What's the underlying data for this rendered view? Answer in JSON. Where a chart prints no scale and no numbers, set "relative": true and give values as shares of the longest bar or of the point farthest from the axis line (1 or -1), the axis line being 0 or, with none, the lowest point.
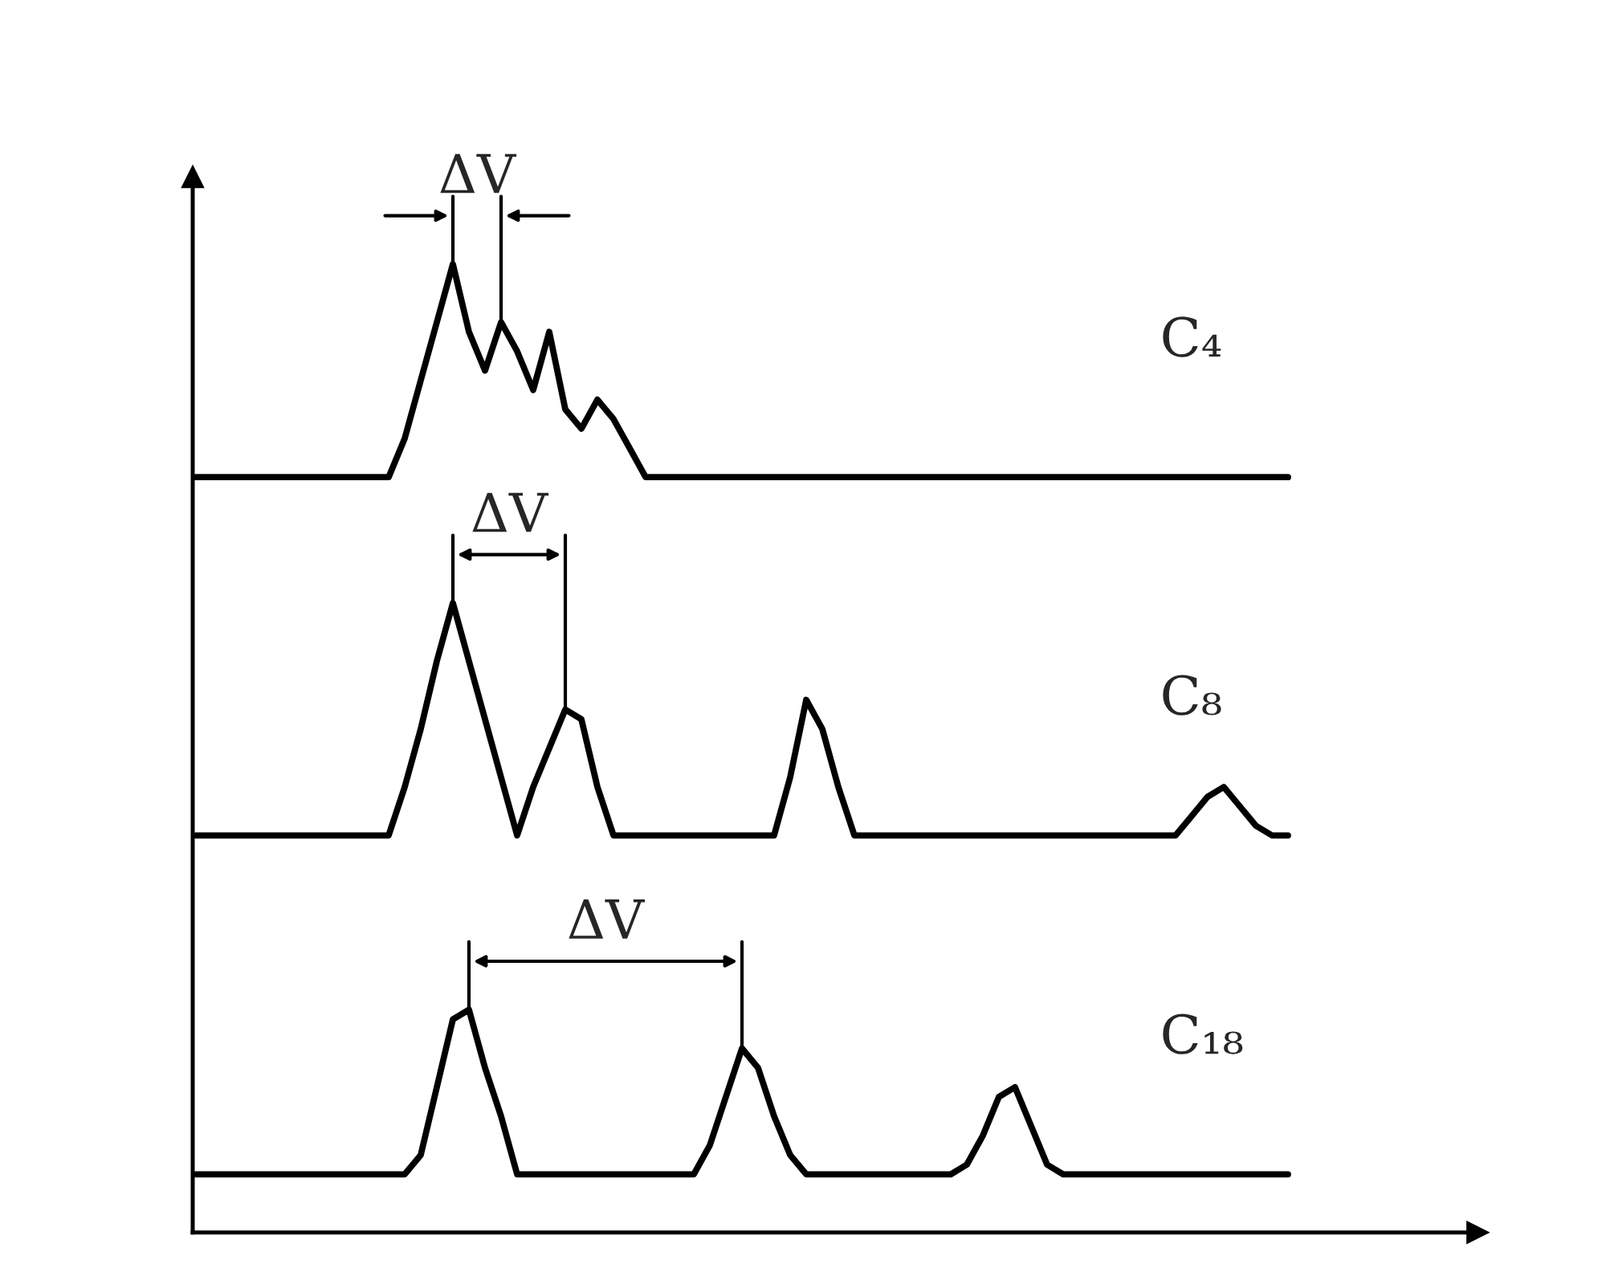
{
  "chart_data": {
    "type": "line",
    "relative": true,
    "categories": [
      null,
      null,
      null,
      null,
      null,
      null,
      null,
      null,
      null,
      null,
      null,
      null,
      null,
      null,
      null,
      null,
      null,
      null,
      null,
      null,
      null,
      null,
      null,
      null,
      null,
      null,
      null,
      null,
      null,
      null,
      null,
      null,
      null,
      null,
      null,
      null,
      null,
      null,
      null,
      null,
      null,
      null,
      null,
      null,
      null,
      null,
      null,
      null,
      null,
      null,
      null,
      null,
      null,
      null,
      null,
      null,
      null,
      null,
      null,
      null,
      null,
      null,
      null,
      null,
      null,
      null,
      null,
      null,
      null
    ],
    "series": [
      {
        "name": "C₄",
        "color": "#000000",
        "values": [
          0.78,
          0.78,
          0.78,
          0.78,
          0.78,
          0.78,
          0.78,
          0.78,
          0.78,
          0.78,
          0.78,
          0.78,
          0.78,
          0.82,
          0.88,
          0.94,
          1.0,
          0.93,
          0.89,
          0.94,
          0.91,
          0.87,
          0.93,
          0.85,
          0.83,
          0.86,
          0.84,
          0.81,
          0.78,
          0.78,
          0.78,
          0.78,
          0.78,
          0.78,
          0.78,
          0.78,
          0.78,
          0.78,
          0.78,
          0.78,
          0.78,
          0.78,
          0.78,
          0.78,
          0.78,
          0.78,
          0.78,
          0.78,
          0.78,
          0.78,
          0.78,
          0.78,
          0.78,
          0.78,
          0.78,
          0.78,
          0.78,
          0.78,
          0.78,
          0.78,
          0.78,
          0.78,
          0.78,
          0.78,
          0.78,
          0.78,
          0.78,
          0.78,
          0.78
        ]
      },
      {
        "name": "C₈",
        "color": "#000000",
        "values": [
          0.41,
          0.41,
          0.41,
          0.41,
          0.41,
          0.41,
          0.41,
          0.41,
          0.41,
          0.41,
          0.41,
          0.41,
          0.41,
          0.46,
          0.52,
          0.59,
          0.65,
          0.59,
          0.53,
          0.47,
          0.41,
          0.46,
          0.5,
          0.54,
          0.53,
          0.46,
          0.41,
          0.41,
          0.41,
          0.41,
          0.41,
          0.41,
          0.41,
          0.41,
          0.41,
          0.41,
          0.41,
          0.47,
          0.55,
          0.52,
          0.46,
          0.41,
          0.41,
          0.41,
          0.41,
          0.41,
          0.41,
          0.41,
          0.41,
          0.41,
          0.41,
          0.41,
          0.41,
          0.41,
          0.41,
          0.41,
          0.41,
          0.41,
          0.41,
          0.41,
          0.41,
          0.41,
          0.43,
          0.45,
          0.46,
          0.44,
          0.42,
          0.41,
          0.41
        ]
      },
      {
        "name": "C₁₈",
        "color": "#000000",
        "values": [
          0.06,
          0.06,
          0.06,
          0.06,
          0.06,
          0.06,
          0.06,
          0.06,
          0.06,
          0.06,
          0.06,
          0.06,
          0.06,
          0.06,
          0.08,
          0.15,
          0.22,
          0.23,
          0.17,
          0.12,
          0.06,
          0.06,
          0.06,
          0.06,
          0.06,
          0.06,
          0.06,
          0.06,
          0.06,
          0.06,
          0.06,
          0.06,
          0.09,
          0.14,
          0.19,
          0.17,
          0.12,
          0.08,
          0.06,
          0.06,
          0.06,
          0.06,
          0.06,
          0.06,
          0.06,
          0.06,
          0.06,
          0.06,
          0.07,
          0.1,
          0.14,
          0.15,
          0.11,
          0.07,
          0.06,
          0.06,
          0.06,
          0.06,
          0.06,
          0.06,
          0.06,
          0.06,
          0.06,
          0.06,
          0.06,
          0.06,
          0.06,
          0.06,
          0.06
        ]
      }
    ],
    "annotations": [
      "ΔV",
      "ΔV",
      "ΔV"
    ],
    "legend": false
  }
}
